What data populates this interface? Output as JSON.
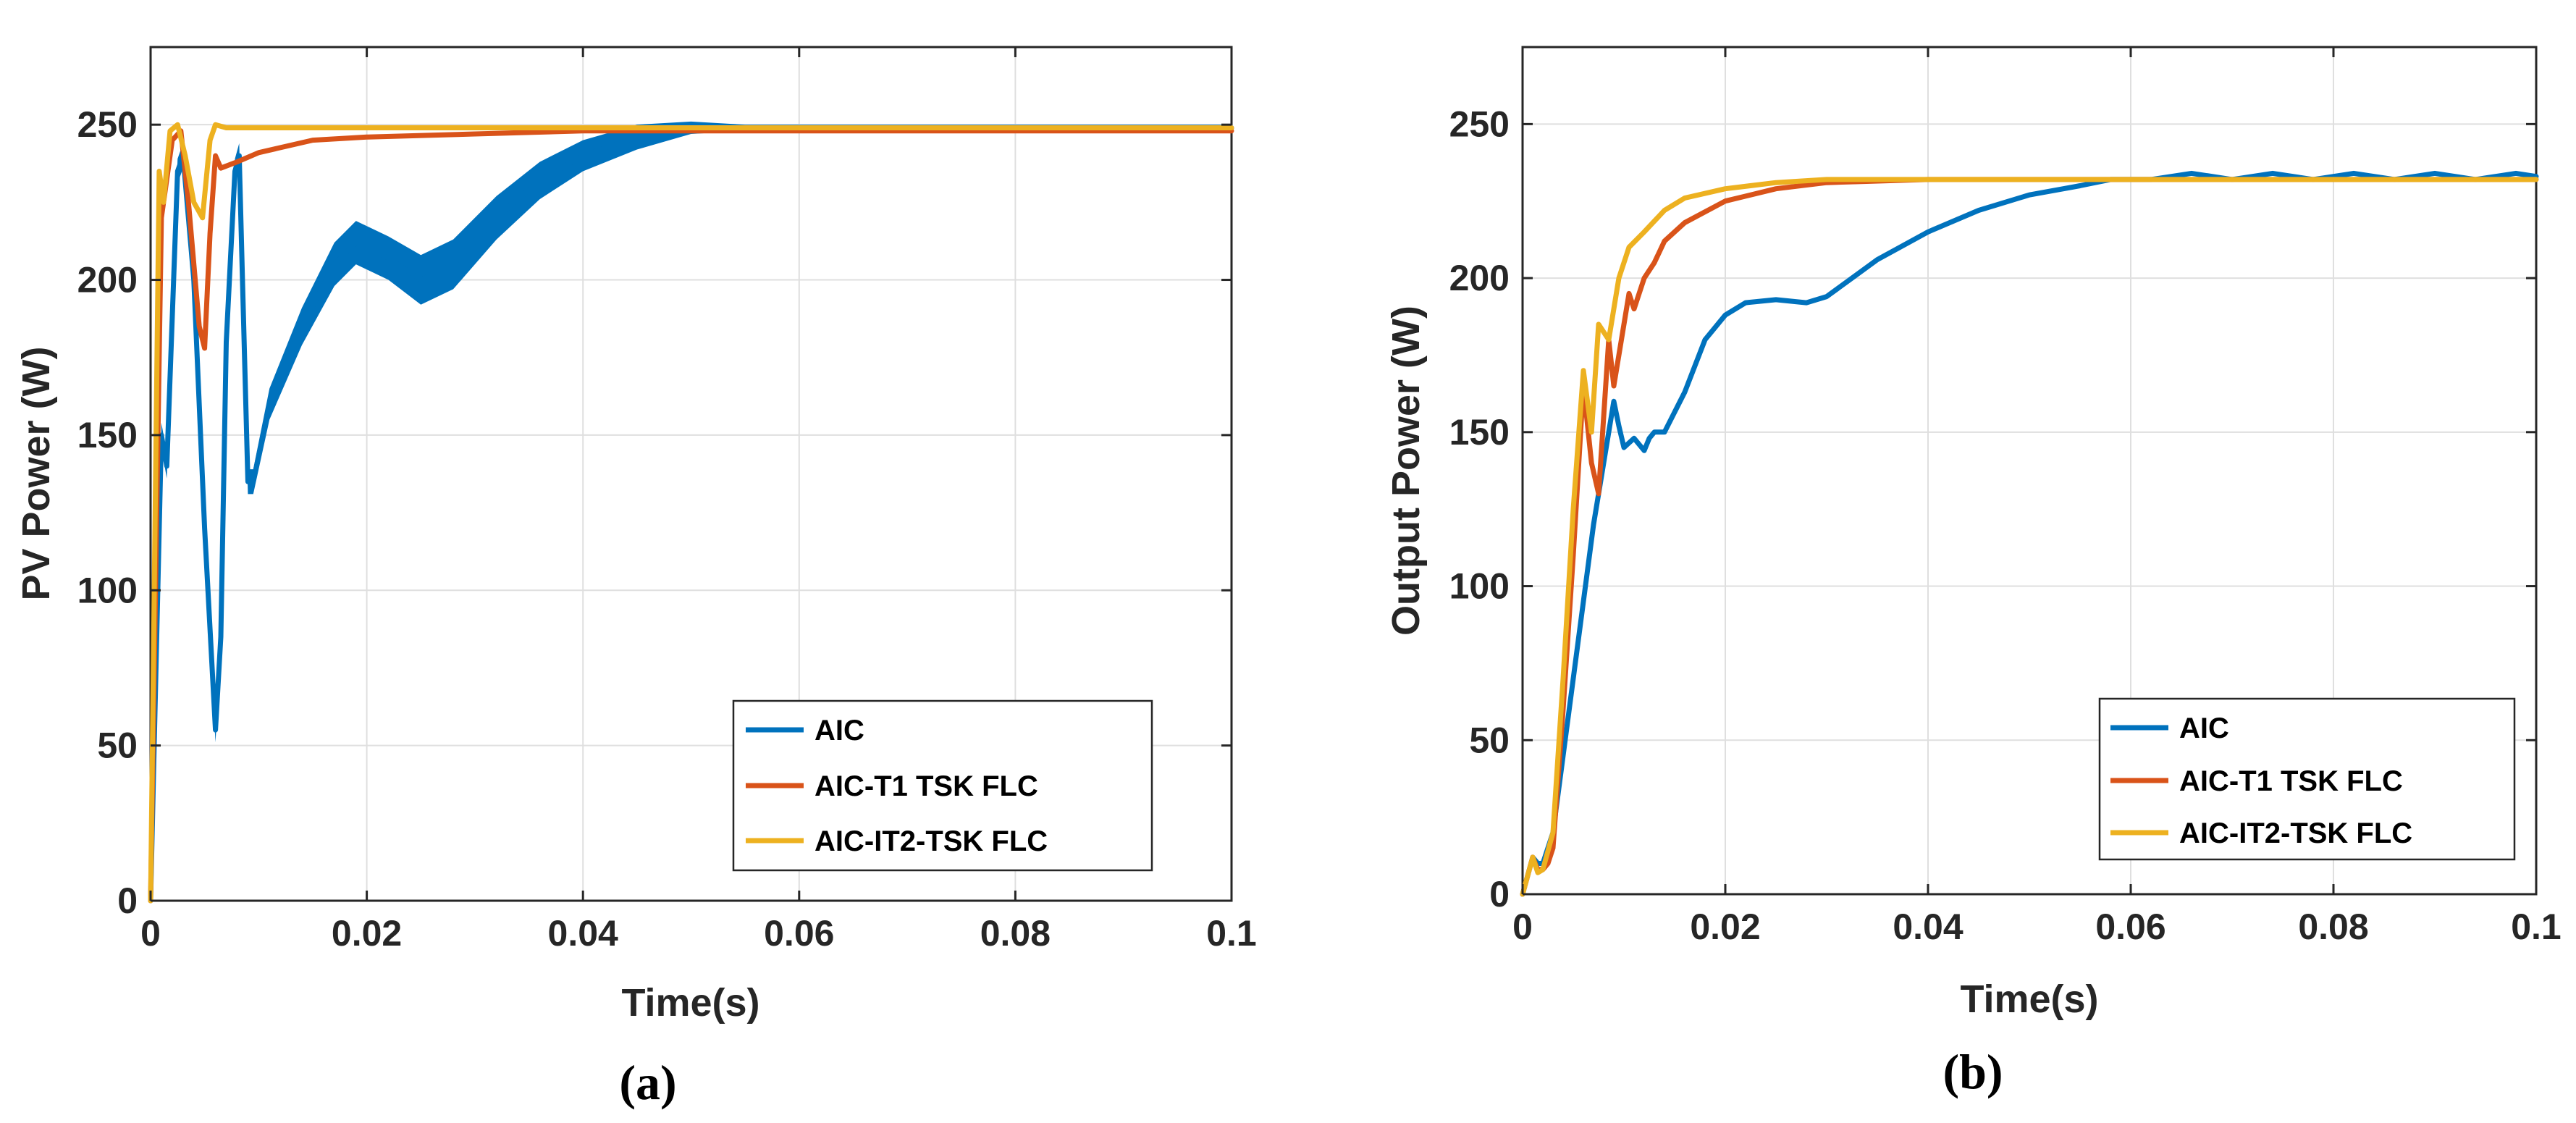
{
  "colors": {
    "aic": "#0072BD",
    "t1": "#D95319",
    "it2": "#EDB120",
    "grid": "#dfdfdf",
    "axis": "#262626"
  },
  "chart_data": [
    {
      "type": "line",
      "caption": "(a)",
      "title": "",
      "xlabel": "Time(s)",
      "ylabel": "PV Power (W)",
      "xlim": [
        0,
        0.1
      ],
      "ylim": [
        0,
        275
      ],
      "xticks": [
        0,
        0.02,
        0.04,
        0.06,
        0.08,
        0.1
      ],
      "xtick_labels": [
        "0",
        "0.02",
        "0.04",
        "0.06",
        "0.08",
        "0.1"
      ],
      "yticks": [
        0,
        50,
        100,
        150,
        200,
        250
      ],
      "ytick_labels": [
        "0",
        "50",
        "100",
        "150",
        "200",
        "250"
      ],
      "grid": true,
      "legend_position": "bottom-right",
      "series": [
        {
          "name": "AIC",
          "color": "#0072BD",
          "band": true,
          "x": [
            0,
            0.001,
            0.0015,
            0.0025,
            0.003,
            0.004,
            0.005,
            0.006,
            0.0065,
            0.007,
            0.0078,
            0.0082,
            0.0085,
            0.009,
            0.0095,
            0.011,
            0.014,
            0.017,
            0.019,
            0.022,
            0.025,
            0.028,
            0.032,
            0.036,
            0.04,
            0.045,
            0.05,
            0.055,
            0.06,
            0.07,
            0.08,
            0.09,
            0.1
          ],
          "values": [
            0,
            150,
            140,
            235,
            240,
            200,
            120,
            55,
            85,
            180,
            235,
            240,
            200,
            135,
            135,
            160,
            185,
            205,
            212,
            207,
            200,
            205,
            220,
            232,
            240,
            246,
            249,
            249,
            249,
            249,
            249,
            249,
            249
          ],
          "band_halfwidth": [
            0,
            4,
            4,
            4,
            4,
            4,
            4,
            4,
            4,
            4,
            4,
            4,
            4,
            4,
            4,
            5,
            6,
            7,
            7,
            7,
            8,
            8,
            7,
            6,
            5,
            4,
            2,
            1,
            1,
            1,
            1,
            1,
            1
          ]
        },
        {
          "name": "AIC-T1 TSK FLC",
          "color": "#D95319",
          "x": [
            0,
            0.001,
            0.002,
            0.0028,
            0.0035,
            0.0045,
            0.005,
            0.0055,
            0.006,
            0.0065,
            0.008,
            0.01,
            0.015,
            0.02,
            0.03,
            0.04,
            0.05,
            0.06,
            0.08,
            0.1
          ],
          "values": [
            0,
            220,
            245,
            248,
            225,
            185,
            178,
            215,
            240,
            236,
            238,
            241,
            245,
            246,
            247,
            248,
            248,
            248,
            248,
            248
          ]
        },
        {
          "name": "AIC-IT2-TSK FLC",
          "color": "#EDB120",
          "x": [
            0,
            0.0008,
            0.0012,
            0.0018,
            0.0025,
            0.0032,
            0.004,
            0.0048,
            0.0055,
            0.006,
            0.007,
            0.01,
            0.02,
            0.04,
            0.06,
            0.08,
            0.1
          ],
          "values": [
            0,
            235,
            225,
            248,
            250,
            240,
            225,
            220,
            245,
            250,
            249,
            249,
            249,
            249,
            249,
            249,
            249
          ]
        }
      ]
    },
    {
      "type": "line",
      "caption": "(b)",
      "title": "",
      "xlabel": "Time(s)",
      "ylabel": "Output Power (W)",
      "xlim": [
        0,
        0.1
      ],
      "ylim": [
        0,
        275
      ],
      "xticks": [
        0,
        0.02,
        0.04,
        0.06,
        0.08,
        0.1
      ],
      "xtick_labels": [
        "0",
        "0.02",
        "0.04",
        "0.06",
        "0.08",
        "0.1"
      ],
      "yticks": [
        0,
        50,
        100,
        150,
        200,
        250
      ],
      "ytick_labels": [
        "0",
        "50",
        "100",
        "150",
        "200",
        "250"
      ],
      "grid": true,
      "legend_position": "bottom-right",
      "series": [
        {
          "name": "AIC",
          "color": "#0072BD",
          "x": [
            0,
            0.001,
            0.0015,
            0.002,
            0.003,
            0.004,
            0.005,
            0.006,
            0.007,
            0.0085,
            0.009,
            0.0095,
            0.01,
            0.011,
            0.012,
            0.0125,
            0.013,
            0.014,
            0.016,
            0.018,
            0.02,
            0.022,
            0.025,
            0.028,
            0.03,
            0.035,
            0.04,
            0.045,
            0.05,
            0.055,
            0.058,
            0.062,
            0.066,
            0.07,
            0.074,
            0.078,
            0.082,
            0.086,
            0.09,
            0.094,
            0.098,
            0.1
          ],
          "values": [
            0,
            12,
            10,
            10,
            20,
            45,
            70,
            95,
            120,
            150,
            160,
            152,
            145,
            148,
            144,
            148,
            150,
            150,
            163,
            180,
            188,
            192,
            193,
            192,
            194,
            206,
            215,
            222,
            227,
            230,
            232,
            232,
            234,
            232,
            234,
            232,
            234,
            232,
            234,
            232,
            234,
            233
          ]
        },
        {
          "name": "AIC-T1 TSK FLC",
          "color": "#D95319",
          "x": [
            0,
            0.001,
            0.0015,
            0.002,
            0.0025,
            0.003,
            0.004,
            0.005,
            0.006,
            0.0068,
            0.0075,
            0.0085,
            0.009,
            0.0095,
            0.0105,
            0.011,
            0.012,
            0.013,
            0.014,
            0.016,
            0.02,
            0.025,
            0.03,
            0.04,
            0.05,
            0.06,
            0.08,
            0.1
          ],
          "values": [
            0,
            12,
            8,
            8,
            10,
            15,
            60,
            110,
            165,
            140,
            130,
            180,
            165,
            175,
            195,
            190,
            200,
            205,
            212,
            218,
            225,
            229,
            231,
            232,
            232,
            232,
            232,
            232
          ]
        },
        {
          "name": "AIC-IT2-TSK FLC",
          "color": "#EDB120",
          "x": [
            0,
            0.001,
            0.0015,
            0.002,
            0.003,
            0.004,
            0.005,
            0.006,
            0.0068,
            0.0075,
            0.0085,
            0.0095,
            0.0105,
            0.012,
            0.014,
            0.016,
            0.02,
            0.025,
            0.03,
            0.04,
            0.05,
            0.06,
            0.08,
            0.1
          ],
          "values": [
            0,
            12,
            7,
            8,
            20,
            70,
            125,
            170,
            150,
            185,
            180,
            200,
            210,
            215,
            222,
            226,
            229,
            231,
            232,
            232,
            232,
            232,
            232,
            232
          ]
        }
      ]
    }
  ]
}
